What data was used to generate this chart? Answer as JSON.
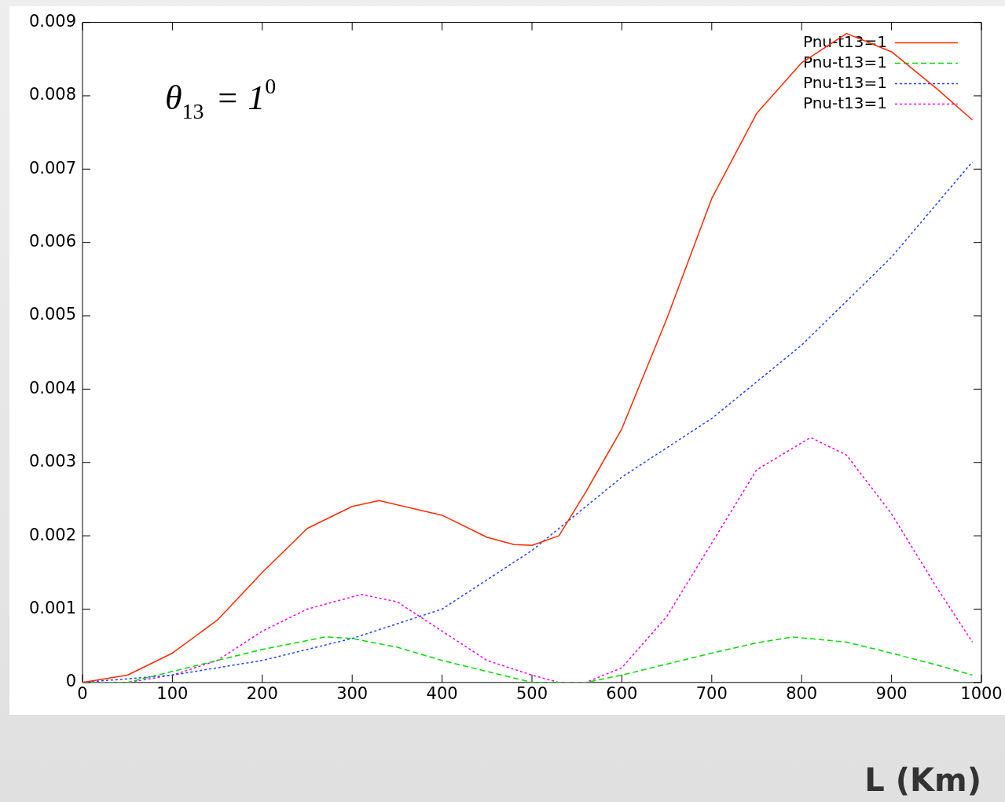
{
  "chart_data": {
    "type": "line",
    "xlabel": "L (Km)",
    "annotations": [
      "θ$_{13}$ = 1$^{0}$"
    ],
    "xlim": [
      0,
      1000
    ],
    "xticks": [
      0,
      100,
      200,
      300,
      400,
      500,
      600,
      700,
      800,
      900,
      1000
    ],
    "ylim": [
      0,
      0.009
    ],
    "yticks": [
      0,
      0.001,
      0.002,
      0.003,
      0.004,
      0.005,
      0.006,
      0.007,
      0.008,
      0.009
    ],
    "legend": "top right",
    "marker": "none",
    "grid": false,
    "series": [
      {
        "name": "Pnu-t13=1",
        "color": "#ff2a00",
        "line_style": "solid",
        "x": [
          0,
          50,
          100,
          150,
          200,
          250,
          300,
          330,
          400,
          450,
          480,
          500,
          530,
          560,
          600,
          650,
          700,
          750,
          800,
          850,
          900,
          950,
          990
        ],
        "values": [
          0,
          0.0001,
          0.0004,
          0.00085,
          0.0015,
          0.0021,
          0.0024,
          0.00248,
          0.00228,
          0.00198,
          0.00188,
          0.00187,
          0.002,
          0.0026,
          0.00346,
          0.00496,
          0.0066,
          0.00776,
          0.00845,
          0.00885,
          0.0086,
          0.0081,
          0.00767
        ]
      },
      {
        "name": "Pnu-t13=1",
        "color": "#00dd00",
        "line_style": "dashed",
        "x": [
          0,
          50,
          100,
          150,
          200,
          270,
          300,
          350,
          400,
          450,
          500,
          560,
          600,
          650,
          700,
          750,
          790,
          850,
          900,
          950,
          990
        ],
        "values": [
          0,
          0,
          0.00015,
          0.0003,
          0.00045,
          0.00062,
          0.0006,
          0.00048,
          0.0003,
          0.00015,
          0,
          0,
          0.0001,
          0.00025,
          0.0004,
          0.00054,
          0.00062,
          0.00055,
          0.0004,
          0.00024,
          0.0001
        ]
      },
      {
        "name": "Pnu-t13=1",
        "color": "#2040ff",
        "line_style": "dotted",
        "x": [
          0,
          100,
          200,
          300,
          400,
          500,
          600,
          700,
          800,
          900,
          990
        ],
        "values": [
          0,
          0.0001,
          0.0003,
          0.0006,
          0.001,
          0.0018,
          0.0028,
          0.0036,
          0.0046,
          0.0058,
          0.0071
        ]
      },
      {
        "name": "Pnu-t13=1",
        "color": "#ee00ee",
        "line_style": "dotted",
        "x": [
          0,
          50,
          100,
          150,
          200,
          250,
          310,
          350,
          400,
          450,
          500,
          530,
          560,
          600,
          650,
          700,
          750,
          810,
          850,
          900,
          950,
          990
        ],
        "values": [
          0,
          0,
          0.0001,
          0.0003,
          0.0007,
          0.001,
          0.0012,
          0.0011,
          0.0007,
          0.0003,
          0.0001,
          0,
          0,
          0.0002,
          0.0009,
          0.0019,
          0.0029,
          0.00334,
          0.0031,
          0.0023,
          0.0013,
          0.00055
        ]
      }
    ]
  }
}
